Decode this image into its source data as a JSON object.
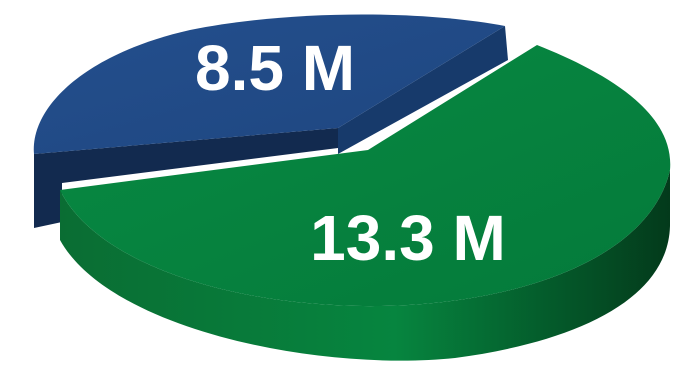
{
  "chart_data": {
    "type": "pie",
    "style": "3d-exploded",
    "categories": [
      "",
      ""
    ],
    "values": [
      8.5,
      13.3
    ],
    "unit": "M",
    "data_labels": [
      "8.5 M",
      "13.3 M"
    ],
    "colors": {
      "slice_1": "#23508f",
      "slice_1_side": "#13294e",
      "slice_2": "#06823f",
      "slice_2_side": "#06532a"
    },
    "title": "",
    "legend": "none"
  }
}
